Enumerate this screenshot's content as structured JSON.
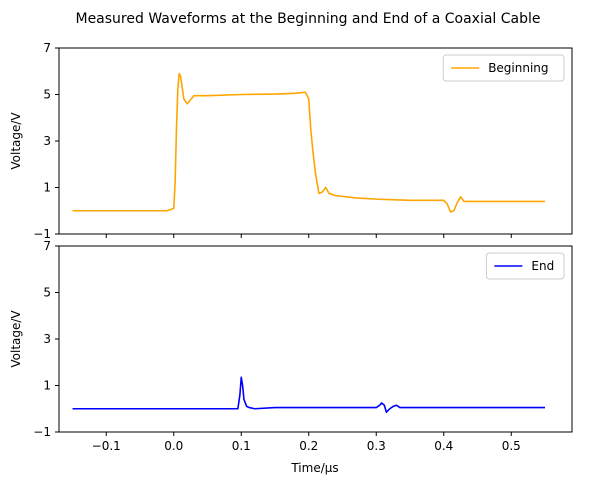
{
  "chart_data": {
    "type": "line",
    "title": "Measured Waveforms at the Beginning and End of a Coaxial Cable",
    "xlabel": "Time/µs",
    "x_ticks": [
      -0.1,
      0.0,
      0.1,
      0.2,
      0.3,
      0.4,
      0.5
    ],
    "x_tick_labels": [
      "−0.1",
      "0.0",
      "0.1",
      "0.2",
      "0.3",
      "0.4",
      "0.5"
    ],
    "xlim": [
      -0.17,
      0.59
    ],
    "shared_x": true,
    "grid": false,
    "panels": [
      {
        "ylabel": "Voltage/V",
        "ylim": [
          -1,
          7
        ],
        "y_ticks": [
          -1,
          1,
          3,
          5,
          7
        ],
        "y_tick_labels": [
          "−1",
          "1",
          "3",
          "5",
          "7"
        ],
        "legend_position": "top-right",
        "show_x_tick_labels": false,
        "series": [
          {
            "name": "Beginning",
            "color": "#FFA500",
            "x": [
              -0.15,
              -0.1,
              -0.05,
              -0.01,
              0.0,
              0.002,
              0.004,
              0.006,
              0.008,
              0.01,
              0.015,
              0.02,
              0.03,
              0.05,
              0.1,
              0.15,
              0.18,
              0.195,
              0.2,
              0.203,
              0.206,
              0.21,
              0.215,
              0.22,
              0.225,
              0.23,
              0.24,
              0.27,
              0.3,
              0.35,
              0.4,
              0.405,
              0.41,
              0.415,
              0.42,
              0.425,
              0.43,
              0.44,
              0.45,
              0.5,
              0.55
            ],
            "y": [
              0.0,
              0.0,
              0.0,
              0.0,
              0.1,
              1.2,
              3.5,
              5.2,
              5.9,
              5.8,
              4.8,
              4.6,
              4.95,
              4.95,
              5.0,
              5.02,
              5.05,
              5.1,
              4.8,
              3.5,
              2.6,
              1.6,
              0.75,
              0.8,
              1.0,
              0.75,
              0.65,
              0.55,
              0.5,
              0.45,
              0.45,
              0.3,
              -0.05,
              0.0,
              0.35,
              0.6,
              0.4,
              0.4,
              0.4,
              0.4,
              0.4
            ]
          }
        ]
      },
      {
        "ylabel": "Voltage/V",
        "ylim": [
          -1,
          7
        ],
        "y_ticks": [
          -1,
          1,
          3,
          5,
          7
        ],
        "y_tick_labels": [
          "−1",
          "1",
          "3",
          "5",
          "7"
        ],
        "legend_position": "top-right",
        "show_x_tick_labels": true,
        "series": [
          {
            "name": "End",
            "color": "#0000FF",
            "x": [
              -0.15,
              -0.1,
              -0.05,
              0.0,
              0.05,
              0.095,
              0.098,
              0.1,
              0.102,
              0.104,
              0.108,
              0.112,
              0.12,
              0.15,
              0.2,
              0.25,
              0.3,
              0.305,
              0.308,
              0.312,
              0.315,
              0.32,
              0.325,
              0.33,
              0.335,
              0.34,
              0.4,
              0.45,
              0.5,
              0.55
            ],
            "y": [
              0.0,
              0.0,
              0.0,
              0.0,
              0.0,
              0.0,
              0.6,
              1.35,
              1.0,
              0.4,
              0.1,
              0.05,
              0.0,
              0.05,
              0.05,
              0.05,
              0.05,
              0.15,
              0.25,
              0.15,
              -0.15,
              0.0,
              0.1,
              0.15,
              0.05,
              0.05,
              0.05,
              0.05,
              0.05,
              0.05
            ]
          }
        ]
      }
    ]
  }
}
